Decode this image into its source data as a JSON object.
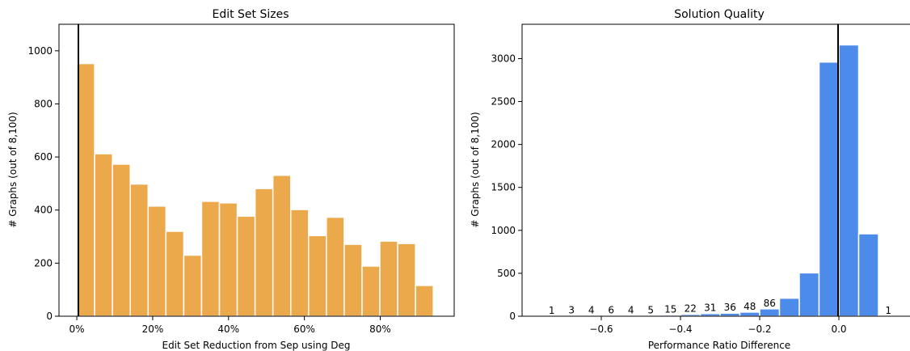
{
  "chart_data": [
    {
      "type": "bar",
      "title": "Edit Set Sizes",
      "xlabel": "Edit Set Reduction from Sep using Deg",
      "ylabel": "# Graphs (out of 8,100)",
      "xlim": [
        -4.7,
        99.5
      ],
      "ylim": [
        0,
        1100
      ],
      "xticks": [
        {
          "value": 0,
          "label": "0%"
        },
        {
          "value": 20,
          "label": "20%"
        },
        {
          "value": 40,
          "label": "40%"
        },
        {
          "value": 60,
          "label": "60%"
        },
        {
          "value": 80,
          "label": "80%"
        }
      ],
      "yticks": [
        {
          "value": 0,
          "label": "0"
        },
        {
          "value": 200,
          "label": "200"
        },
        {
          "value": 400,
          "label": "400"
        },
        {
          "value": 600,
          "label": "600"
        },
        {
          "value": 800,
          "label": "800"
        },
        {
          "value": 1000,
          "label": "1000"
        }
      ],
      "bin_edges": [
        0,
        4.7,
        9.4,
        14.1,
        18.8,
        23.5,
        28.2,
        32.9,
        37.6,
        42.3,
        47.0,
        51.7,
        56.4,
        61.1,
        65.8,
        70.5,
        75.2,
        79.9,
        84.6,
        89.3,
        94.0
      ],
      "values": [
        952,
        612,
        573,
        498,
        415,
        320,
        230,
        433,
        427,
        377,
        481,
        531,
        402,
        304,
        373,
        271,
        189,
        283,
        274,
        116
      ],
      "vline": 0,
      "bar_color": "#EBA94C",
      "grid": false
    },
    {
      "type": "bar",
      "title": "Solution Quality",
      "xlabel": "Performance Ratio Difference",
      "ylabel": "# Graphs (out of 8,100)",
      "xlim": [
        -0.8,
        0.2
      ],
      "ylim": [
        0,
        3400
      ],
      "xticks": [
        {
          "value": -0.6,
          "label": "−0.6"
        },
        {
          "value": -0.4,
          "label": "−0.4"
        },
        {
          "value": -0.2,
          "label": "−0.2"
        },
        {
          "value": 0.0,
          "label": "0.0"
        }
      ],
      "yticks": [
        {
          "value": 0,
          "label": "0"
        },
        {
          "value": 500,
          "label": "500"
        },
        {
          "value": 1000,
          "label": "1000"
        },
        {
          "value": 1500,
          "label": "1500"
        },
        {
          "value": 2000,
          "label": "2000"
        },
        {
          "value": 2500,
          "label": "2500"
        },
        {
          "value": 3000,
          "label": "3000"
        }
      ],
      "bin_edges": [
        -0.75,
        -0.7,
        -0.65,
        -0.6,
        -0.55,
        -0.5,
        -0.45,
        -0.4,
        -0.35,
        -0.3,
        -0.25,
        -0.2,
        -0.15,
        -0.1,
        -0.05,
        0.0,
        0.05,
        0.1,
        0.15
      ],
      "values": [
        1,
        3,
        4,
        6,
        4,
        5,
        15,
        22,
        31,
        36,
        48,
        86,
        210,
        505,
        2960,
        3160,
        960,
        1
      ],
      "bar_labels": [
        "1",
        "3",
        "4",
        "6",
        "4",
        "5",
        "15",
        "22",
        "31",
        "36",
        "48",
        "86",
        "",
        "",
        "",
        "",
        "",
        "1"
      ],
      "vline": 0,
      "bar_color": "#4C8BEA",
      "grid": false
    }
  ]
}
